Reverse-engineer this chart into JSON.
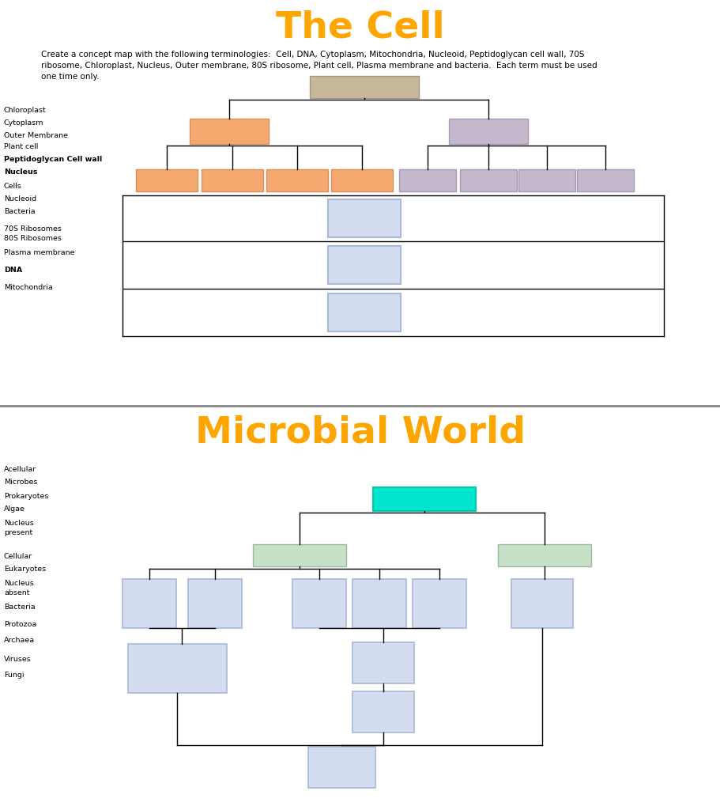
{
  "title1": "The Cell",
  "title2": "Microbial World",
  "title_color": "#FFA500",
  "bg_color": "#FFFFFF",
  "description": "Create a concept map with the following terminologies:  Cell, DNA, Cytoplasm, Mitochondria, Nucleoid, Peptidoglycan cell wall, 70S ribosome, Chloroplast, Nucleus, Outer membrane, 80S ribosome, Plant cell, Plasma membrane and bacteria.  Each term must be used one time only.",
  "left_labels_top": [
    "Chloroplast",
    "Cytoplasm",
    "Outer Membrane",
    "Plant cell",
    "Peptidoglycan Cell wall",
    "Nucleus",
    "Cells",
    "Nucleoid",
    "Bacteria",
    "70S Ribosomes\n80S Ribosomes",
    "Plasma membrane",
    "DNA",
    "Mitochondria"
  ],
  "left_labels_bottom": [
    "Acellular",
    "Microbes",
    "Prokaryotes",
    "Algae",
    "Nucleus\npresent",
    "Cellular",
    "Eukaryotes",
    "Nucleus\nabsent",
    "Bacteria",
    "Protozoa",
    "Archaea",
    "Viruses",
    "Fungi"
  ],
  "box_tan": "#C8B89A",
  "box_orange": "#F5A96E",
  "box_purple": "#C4B8CC",
  "box_blue": "#D4DCF0",
  "box_green_light": "#C8E0C8",
  "box_teal": "#00E5CC",
  "edge_blue": "#A8B8D8",
  "edge_purple": "#A899B5",
  "edge_orange": "#D49060",
  "edge_green": "#99BB99"
}
